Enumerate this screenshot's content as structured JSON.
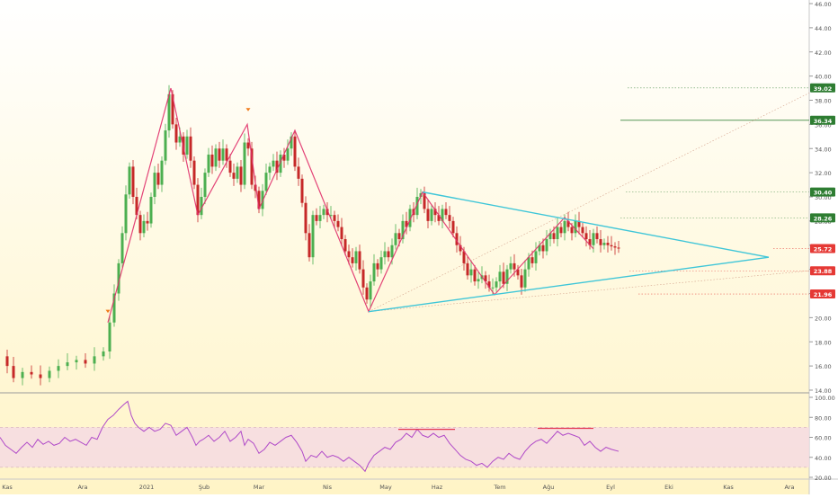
{
  "colors": {
    "bg_top": "#ffffff",
    "bg_bottom": "#fff3c4",
    "up_candle": "#4caf50",
    "down_candle": "#c62828",
    "zigzag": "#e0306a",
    "triangle": "#3fc6d8",
    "rsi_line": "#b04ac8",
    "rsi_band": "#f6dbe3",
    "price_label_green": "#2e7d32",
    "price_label_red": "#e53935",
    "divergence": "#e53950"
  },
  "chart_data": [
    {
      "type": "candlestick",
      "title": "",
      "ylabel": "",
      "ylim": [
        14,
        46
      ],
      "y_ticks": [
        "14.00",
        "16.00",
        "18.00",
        "20.00",
        "22.00",
        "24.00",
        "26.00",
        "28.00",
        "30.00",
        "32.00",
        "34.00",
        "36.00",
        "38.00",
        "40.00",
        "42.00",
        "44.00",
        "46.00"
      ],
      "x_labels": [
        "Kas",
        "Ara",
        "2021",
        "Şub",
        "Mar",
        "Nis",
        "May",
        "Haz",
        "Tem",
        "Ağu",
        "Eyl",
        "Eki",
        "Kas",
        "Ara"
      ],
      "price_levels": [
        {
          "label": "39.02",
          "value": 39.02,
          "style": "green"
        },
        {
          "label": "36.34",
          "value": 36.34,
          "style": "green"
        },
        {
          "label": "30.40",
          "value": 30.4,
          "style": "green"
        },
        {
          "label": "28.26",
          "value": 28.26,
          "style": "green"
        },
        {
          "label": "25.72",
          "value": 25.72,
          "style": "red"
        },
        {
          "label": "23.88",
          "value": 23.88,
          "style": "red"
        },
        {
          "label": "21.96",
          "value": 21.96,
          "style": "red"
        }
      ],
      "close_path": [
        [
          0,
          16.8
        ],
        [
          8,
          16.0
        ],
        [
          15,
          15.0
        ],
        [
          25,
          15.5
        ],
        [
          35,
          15.3
        ],
        [
          45,
          15.0
        ],
        [
          55,
          15.6
        ],
        [
          65,
          16.0
        ],
        [
          75,
          16.3
        ],
        [
          85,
          16.5
        ],
        [
          95,
          16.2
        ],
        [
          105,
          16.8
        ],
        [
          115,
          17.2
        ],
        [
          122,
          19.6
        ],
        [
          127,
          22.0
        ],
        [
          132,
          24.5
        ],
        [
          136,
          27.0
        ],
        [
          140,
          30.2
        ],
        [
          144,
          32.5
        ],
        [
          148,
          30.0
        ],
        [
          152,
          28.5
        ],
        [
          156,
          27.0
        ],
        [
          160,
          28.0
        ],
        [
          164,
          27.8
        ],
        [
          168,
          30.0
        ],
        [
          172,
          32.0
        ],
        [
          176,
          31.0
        ],
        [
          180,
          33.0
        ],
        [
          184,
          35.5
        ],
        [
          188,
          38.5
        ],
        [
          192,
          36.0
        ],
        [
          196,
          34.5
        ],
        [
          200,
          35.0
        ],
        [
          204,
          33.5
        ],
        [
          208,
          35.0
        ],
        [
          212,
          33.0
        ],
        [
          216,
          31.0
        ],
        [
          220,
          28.5
        ],
        [
          224,
          30.0
        ],
        [
          228,
          32.0
        ],
        [
          232,
          33.5
        ],
        [
          236,
          32.5
        ],
        [
          240,
          34.0
        ],
        [
          244,
          33.0
        ],
        [
          248,
          34.0
        ],
        [
          252,
          33.0
        ],
        [
          256,
          32.0
        ],
        [
          260,
          31.5
        ],
        [
          264,
          32.5
        ],
        [
          268,
          31.0
        ],
        [
          272,
          34.5
        ],
        [
          276,
          34.0
        ],
        [
          280,
          31.0
        ],
        [
          284,
          30.5
        ],
        [
          288,
          29.0
        ],
        [
          292,
          30.5
        ],
        [
          296,
          32.0
        ],
        [
          300,
          32.5
        ],
        [
          304,
          33.0
        ],
        [
          308,
          32.0
        ],
        [
          312,
          33.5
        ],
        [
          316,
          33.0
        ],
        [
          320,
          34.0
        ],
        [
          324,
          35.0
        ],
        [
          328,
          32.5
        ],
        [
          332,
          31.5
        ],
        [
          336,
          29.5
        ],
        [
          340,
          27.0
        ],
        [
          344,
          25.0
        ],
        [
          348,
          28.5
        ],
        [
          352,
          28.0
        ],
        [
          356,
          28.5
        ],
        [
          360,
          29.0
        ],
        [
          364,
          28.5
        ],
        [
          368,
          28.5
        ],
        [
          372,
          28.0
        ],
        [
          376,
          27.5
        ],
        [
          380,
          26.5
        ],
        [
          384,
          25.5
        ],
        [
          388,
          25.0
        ],
        [
          392,
          24.5
        ],
        [
          396,
          25.5
        ],
        [
          400,
          24.0
        ],
        [
          404,
          22.5
        ],
        [
          408,
          21.5
        ],
        [
          412,
          23.0
        ],
        [
          416,
          24.5
        ],
        [
          420,
          24.0
        ],
        [
          424,
          25.0
        ],
        [
          428,
          25.5
        ],
        [
          432,
          25.0
        ],
        [
          436,
          26.0
        ],
        [
          440,
          27.0
        ],
        [
          444,
          26.5
        ],
        [
          448,
          28.0
        ],
        [
          452,
          27.5
        ],
        [
          456,
          29.0
        ],
        [
          460,
          28.5
        ],
        [
          464,
          30.0
        ],
        [
          468,
          30.3
        ],
        [
          472,
          29.0
        ],
        [
          476,
          28.0
        ],
        [
          480,
          29.0
        ],
        [
          484,
          28.5
        ],
        [
          488,
          28.0
        ],
        [
          492,
          29.0
        ],
        [
          496,
          28.5
        ],
        [
          500,
          28.0
        ],
        [
          504,
          27.0
        ],
        [
          508,
          26.0
        ],
        [
          512,
          25.5
        ],
        [
          516,
          24.5
        ],
        [
          520,
          23.5
        ],
        [
          524,
          24.0
        ],
        [
          528,
          23.0
        ],
        [
          532,
          23.2
        ],
        [
          536,
          23.5
        ],
        [
          540,
          23.0
        ],
        [
          544,
          22.5
        ],
        [
          548,
          22.5
        ],
        [
          552,
          23.0
        ],
        [
          556,
          23.8
        ],
        [
          560,
          22.8
        ],
        [
          564,
          24.0
        ],
        [
          568,
          24.5
        ],
        [
          572,
          24.0
        ],
        [
          576,
          23.5
        ],
        [
          580,
          22.5
        ],
        [
          584,
          24.0
        ],
        [
          588,
          25.0
        ],
        [
          592,
          24.5
        ],
        [
          596,
          25.5
        ],
        [
          600,
          26.0
        ],
        [
          604,
          25.5
        ],
        [
          608,
          26.5
        ],
        [
          612,
          27.0
        ],
        [
          616,
          26.5
        ],
        [
          620,
          27.5
        ],
        [
          624,
          27.0
        ],
        [
          628,
          28.0
        ],
        [
          632,
          27.5
        ],
        [
          636,
          27.0
        ],
        [
          640,
          28.0
        ],
        [
          644,
          27.5
        ],
        [
          648,
          27.0
        ],
        [
          652,
          26.5
        ],
        [
          656,
          26.0
        ],
        [
          660,
          27.0
        ],
        [
          664,
          26.5
        ],
        [
          668,
          26.0
        ],
        [
          672,
          26.2
        ],
        [
          676,
          26.0
        ],
        [
          680,
          25.9
        ],
        [
          684,
          25.8
        ],
        [
          688,
          25.72
        ]
      ],
      "zigzag": [
        [
          120,
          19.6
        ],
        [
          190,
          39.0
        ],
        [
          220,
          28.5
        ],
        [
          275,
          36.0
        ],
        [
          288,
          29.0
        ],
        [
          328,
          35.5
        ],
        [
          410,
          20.5
        ],
        [
          470,
          30.4
        ],
        [
          550,
          21.9
        ],
        [
          628,
          28.3
        ],
        [
          660,
          25.7
        ]
      ],
      "triangle_upper": [
        [
          470,
          30.4
        ],
        [
          855,
          25.0
        ]
      ],
      "triangle_lower": [
        [
          410,
          20.5
        ],
        [
          855,
          25.0
        ]
      ],
      "projection_lines": [
        [
          [
            410,
            20.5
          ],
          [
            900,
            38.6
          ]
        ],
        [
          [
            410,
            20.5
          ],
          [
            900,
            23.88
          ]
        ]
      ],
      "arrow_markers": [
        [
          120,
          20.5
        ],
        [
          276,
          37.2
        ]
      ]
    },
    {
      "type": "line",
      "title": "",
      "ylim": [
        20,
        100
      ],
      "y_ticks": [
        "20.00",
        "40.00",
        "60.00",
        "80.00",
        "100.00"
      ],
      "band": [
        30,
        70
      ],
      "series": [
        {
          "values": [
            [
              0,
              60
            ],
            [
              6,
              52
            ],
            [
              12,
              48
            ],
            [
              18,
              44
            ],
            [
              24,
              50
            ],
            [
              30,
              55
            ],
            [
              36,
              50
            ],
            [
              42,
              58
            ],
            [
              48,
              53
            ],
            [
              54,
              56
            ],
            [
              60,
              52
            ],
            [
              66,
              54
            ],
            [
              72,
              60
            ],
            [
              78,
              56
            ],
            [
              84,
              58
            ],
            [
              90,
              55
            ],
            [
              96,
              52
            ],
            [
              102,
              60
            ],
            [
              108,
              58
            ],
            [
              114,
              70
            ],
            [
              120,
              78
            ],
            [
              126,
              82
            ],
            [
              132,
              88
            ],
            [
              138,
              93
            ],
            [
              142,
              96
            ],
            [
              146,
              82
            ],
            [
              150,
              74
            ],
            [
              154,
              70
            ],
            [
              160,
              66
            ],
            [
              166,
              70
            ],
            [
              172,
              66
            ],
            [
              178,
              68
            ],
            [
              184,
              74
            ],
            [
              190,
              72
            ],
            [
              196,
              62
            ],
            [
              202,
              66
            ],
            [
              208,
              70
            ],
            [
              214,
              60
            ],
            [
              218,
              52
            ],
            [
              222,
              56
            ],
            [
              226,
              58
            ],
            [
              232,
              62
            ],
            [
              238,
              56
            ],
            [
              244,
              60
            ],
            [
              250,
              66
            ],
            [
              256,
              56
            ],
            [
              262,
              60
            ],
            [
              268,
              66
            ],
            [
              272,
              52
            ],
            [
              276,
              58
            ],
            [
              282,
              54
            ],
            [
              288,
              44
            ],
            [
              294,
              48
            ],
            [
              300,
              55
            ],
            [
              306,
              52
            ],
            [
              312,
              56
            ],
            [
              318,
              60
            ],
            [
              324,
              62
            ],
            [
              330,
              55
            ],
            [
              336,
              46
            ],
            [
              340,
              36
            ],
            [
              346,
              42
            ],
            [
              352,
              40
            ],
            [
              358,
              46
            ],
            [
              364,
              40
            ],
            [
              370,
              42
            ],
            [
              376,
              40
            ],
            [
              382,
              36
            ],
            [
              388,
              40
            ],
            [
              394,
              36
            ],
            [
              400,
              32
            ],
            [
              406,
              26
            ],
            [
              410,
              34
            ],
            [
              416,
              42
            ],
            [
              422,
              46
            ],
            [
              428,
              50
            ],
            [
              434,
              48
            ],
            [
              440,
              55
            ],
            [
              446,
              58
            ],
            [
              452,
              64
            ],
            [
              458,
              60
            ],
            [
              464,
              68
            ],
            [
              470,
              62
            ],
            [
              476,
              60
            ],
            [
              482,
              64
            ],
            [
              488,
              60
            ],
            [
              494,
              62
            ],
            [
              500,
              54
            ],
            [
              506,
              48
            ],
            [
              512,
              42
            ],
            [
              518,
              38
            ],
            [
              524,
              36
            ],
            [
              530,
              32
            ],
            [
              536,
              34
            ],
            [
              542,
              30
            ],
            [
              548,
              36
            ],
            [
              554,
              40
            ],
            [
              560,
              38
            ],
            [
              566,
              44
            ],
            [
              572,
              40
            ],
            [
              578,
              38
            ],
            [
              584,
              46
            ],
            [
              590,
              52
            ],
            [
              596,
              56
            ],
            [
              602,
              58
            ],
            [
              608,
              54
            ],
            [
              614,
              60
            ],
            [
              620,
              66
            ],
            [
              626,
              62
            ],
            [
              632,
              64
            ],
            [
              638,
              62
            ],
            [
              644,
              60
            ],
            [
              650,
              52
            ],
            [
              656,
              56
            ],
            [
              662,
              50
            ],
            [
              668,
              46
            ],
            [
              674,
              50
            ],
            [
              680,
              48
            ],
            [
              688,
              46
            ]
          ]
        }
      ],
      "divergence_lines": [
        [
          [
            443,
            68
          ],
          [
            506,
            68
          ]
        ],
        [
          [
            598,
            69
          ],
          [
            660,
            69
          ]
        ]
      ]
    }
  ]
}
